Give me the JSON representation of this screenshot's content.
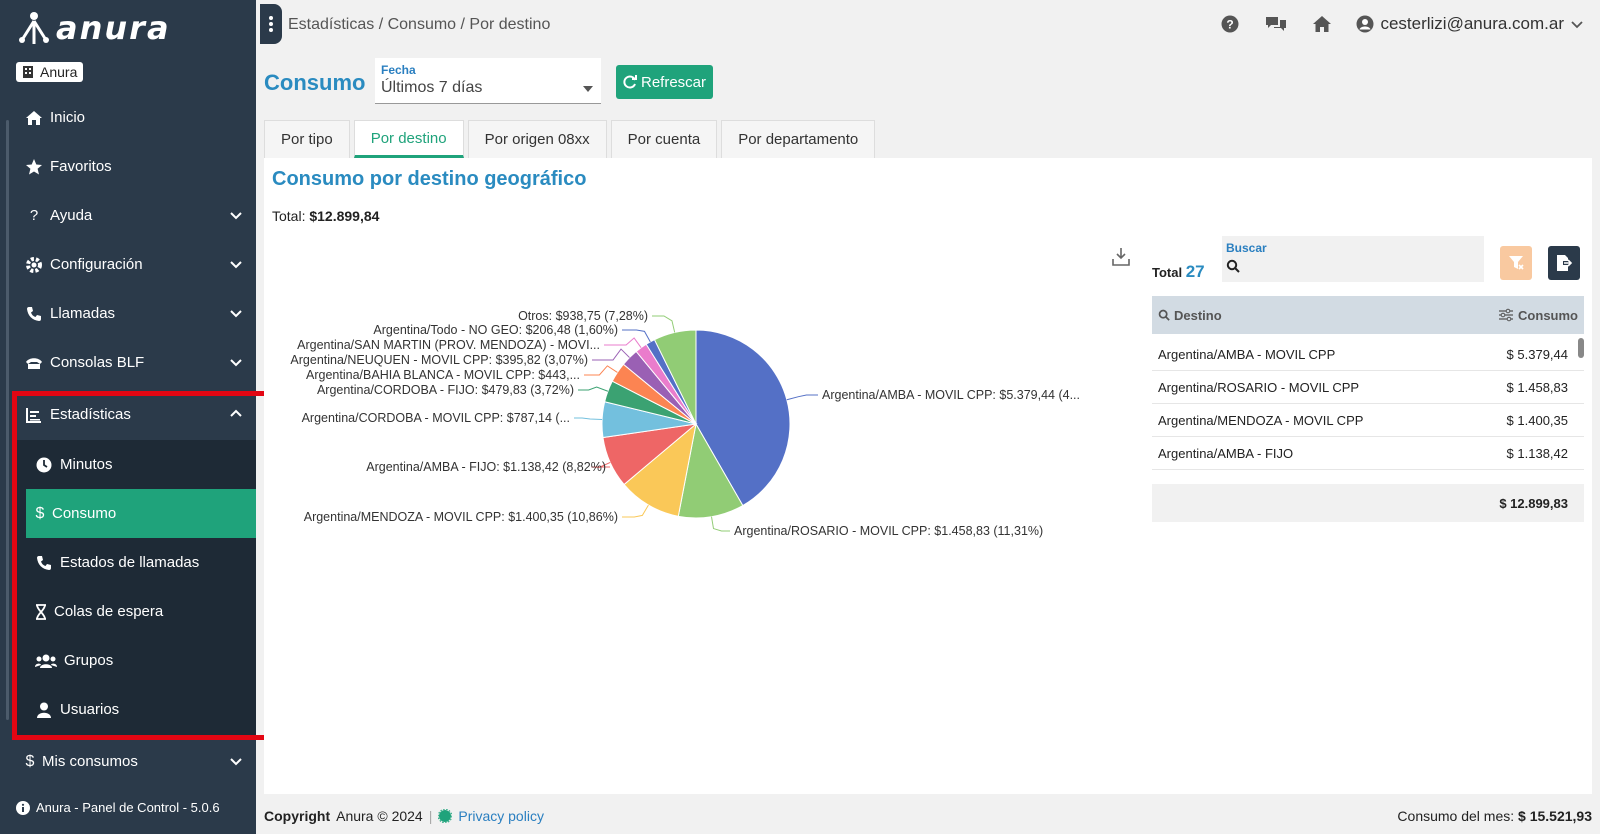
{
  "app": {
    "brand": "anura",
    "org": "Anura",
    "version": "Anura - Panel de Control - 5.0.6"
  },
  "sidebar": {
    "items": [
      {
        "label": "Inicio",
        "icon": "home-icon"
      },
      {
        "label": "Favoritos",
        "icon": "star-icon"
      },
      {
        "label": "Ayuda",
        "icon": "question-icon"
      },
      {
        "label": "Configuración",
        "icon": "gear-icon"
      },
      {
        "label": "Llamadas",
        "icon": "phone-icon"
      },
      {
        "label": "Consolas BLF",
        "icon": "console-icon"
      },
      {
        "label": "Estadísticas",
        "icon": "chart-icon"
      },
      {
        "label": "Mis consumos",
        "icon": "dollar-icon"
      }
    ],
    "stats_sub": [
      {
        "label": "Minutos",
        "icon": "clock-icon"
      },
      {
        "label": "Consumo",
        "icon": "dollar-icon"
      },
      {
        "label": "Estados de llamadas",
        "icon": "phone-icon"
      },
      {
        "label": "Colas de espera",
        "icon": "hourglass-icon"
      },
      {
        "label": "Grupos",
        "icon": "users-icon"
      },
      {
        "label": "Usuarios",
        "icon": "user-icon"
      }
    ]
  },
  "topbar": {
    "breadcrumb": "Estadísticas / Consumo / Por destino",
    "user": "cesterlizi@anura.com.ar"
  },
  "header": {
    "title": "Consumo",
    "fecha_label": "Fecha",
    "fecha_value": "Últimos 7 días",
    "refresh_label": "Refrescar"
  },
  "tabs": [
    "Por tipo",
    "Por destino",
    "Por origen 08xx",
    "Por cuenta",
    "Por departamento"
  ],
  "panel": {
    "title": "Consumo por destino geográfico",
    "total_label": "Total:",
    "total_value": "$12.899,84"
  },
  "chart_data": {
    "type": "pie",
    "title": "",
    "slices": [
      {
        "label": "Argentina/AMBA - MOVIL CPP: $5.379,44 (4...",
        "value": 5379.44,
        "color": "#5470c6"
      },
      {
        "label": "Argentina/ROSARIO - MOVIL CPP: $1.458,83 (11,31%)",
        "value": 1458.83,
        "color": "#91cc75"
      },
      {
        "label": "Argentina/MENDOZA - MOVIL CPP: $1.400,35 (10,86%)",
        "value": 1400.35,
        "color": "#fac858"
      },
      {
        "label": "Argentina/AMBA - FIJO: $1.138,42 (8,82%)",
        "value": 1138.42,
        "color": "#ee6666"
      },
      {
        "label": "Argentina/CORDOBA - MOVIL CPP: $787,14 (...",
        "value": 787.14,
        "color": "#73c0de"
      },
      {
        "label": "Argentina/CORDOBA - FIJO: $479,83 (3,72%)",
        "value": 479.83,
        "color": "#3ba272"
      },
      {
        "label": "Argentina/BAHIA BLANCA - MOVIL CPP: $443,...",
        "value": 443.0,
        "color": "#fc8452"
      },
      {
        "label": "Argentina/NEUQUEN - MOVIL CPP: $395,82 (3,07%)",
        "value": 395.82,
        "color": "#9a60b4"
      },
      {
        "label": "Argentina/SAN MARTIN (PROV.  MENDOZA) - MOVI...",
        "value": 270.0,
        "color": "#ea7ccc"
      },
      {
        "label": "Argentina/Todo - NO GEO: $206,48 (1,60%)",
        "value": 206.48,
        "color": "#5470c6"
      },
      {
        "label": "Otros: $938,75 (7,28%)",
        "value": 938.75,
        "color": "#91cc75"
      }
    ]
  },
  "table": {
    "total_label": "Total",
    "total_count": "27",
    "search_label": "Buscar",
    "col_destino": "Destino",
    "col_consumo": "Consumo",
    "rows": [
      {
        "destino": "Argentina/AMBA - MOVIL CPP",
        "consumo": "$ 5.379,44"
      },
      {
        "destino": "Argentina/ROSARIO - MOVIL CPP",
        "consumo": "$ 1.458,83"
      },
      {
        "destino": "Argentina/MENDOZA - MOVIL CPP",
        "consumo": "$ 1.400,35"
      },
      {
        "destino": "Argentina/AMBA - FIJO",
        "consumo": "$ 1.138,42"
      }
    ],
    "footer_total": "$ 12.899,83"
  },
  "footer": {
    "copyright_bold": "Copyright",
    "copyright_rest": "Anura © 2024",
    "privacy": "Privacy policy",
    "month_label": "Consumo del mes:",
    "month_value": "$ 15.521,93"
  }
}
